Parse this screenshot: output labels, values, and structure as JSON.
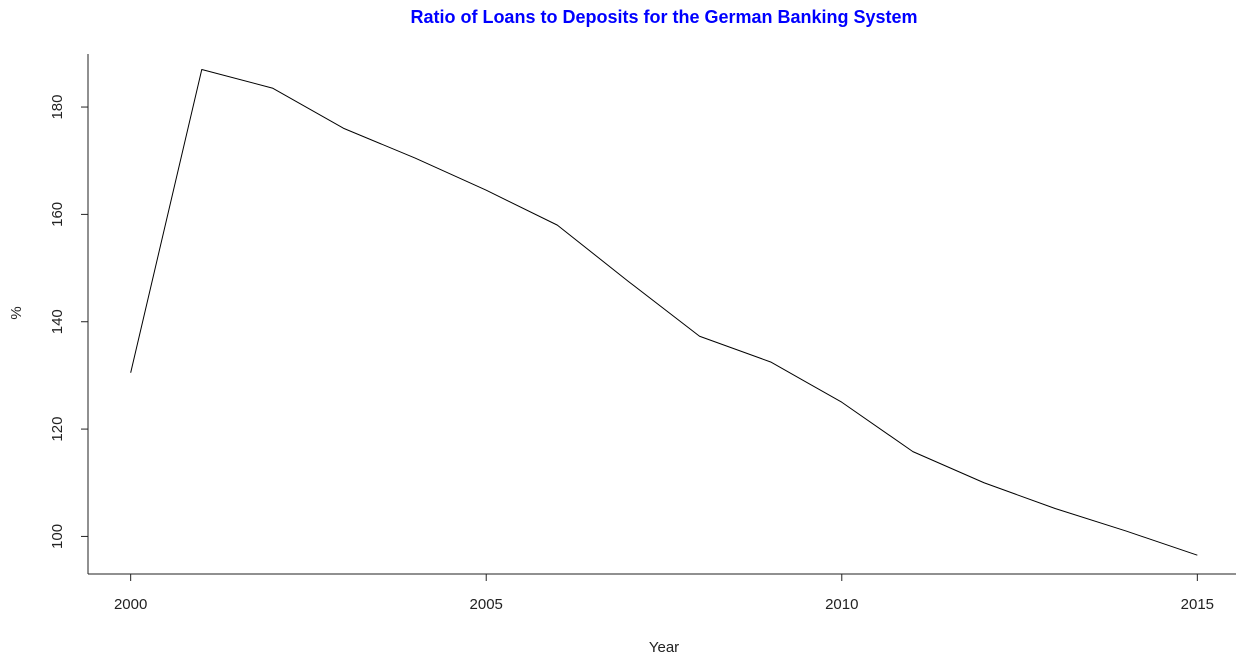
{
  "chart_data": {
    "type": "line",
    "title": "Ratio of Loans to Deposits for  the German Banking System",
    "xlabel": "Year",
    "ylabel": "%",
    "x": [
      2000,
      2001,
      2002,
      2003,
      2004,
      2005,
      2006,
      2007,
      2008,
      2009,
      2010,
      2011,
      2012,
      2013,
      2014,
      2015
    ],
    "series": [
      {
        "values": [
          130.5,
          187,
          183.5,
          176,
          170.5,
          164.5,
          158,
          147.5,
          137.3,
          132.5,
          125,
          115.8,
          110,
          105.2,
          101,
          96.5
        ]
      }
    ],
    "xticks": [
      "2000",
      "2005",
      "2010",
      "2015"
    ],
    "yticks": [
      "100",
      "120",
      "140",
      "160",
      "180"
    ],
    "xlim": [
      1999.4,
      2015.6
    ],
    "ylim": [
      93,
      191
    ],
    "grid": false,
    "legend": "none"
  },
  "colors": {
    "title": "#0000ff",
    "line": "#000000",
    "axis": "#222222",
    "background": "#ffffff"
  }
}
